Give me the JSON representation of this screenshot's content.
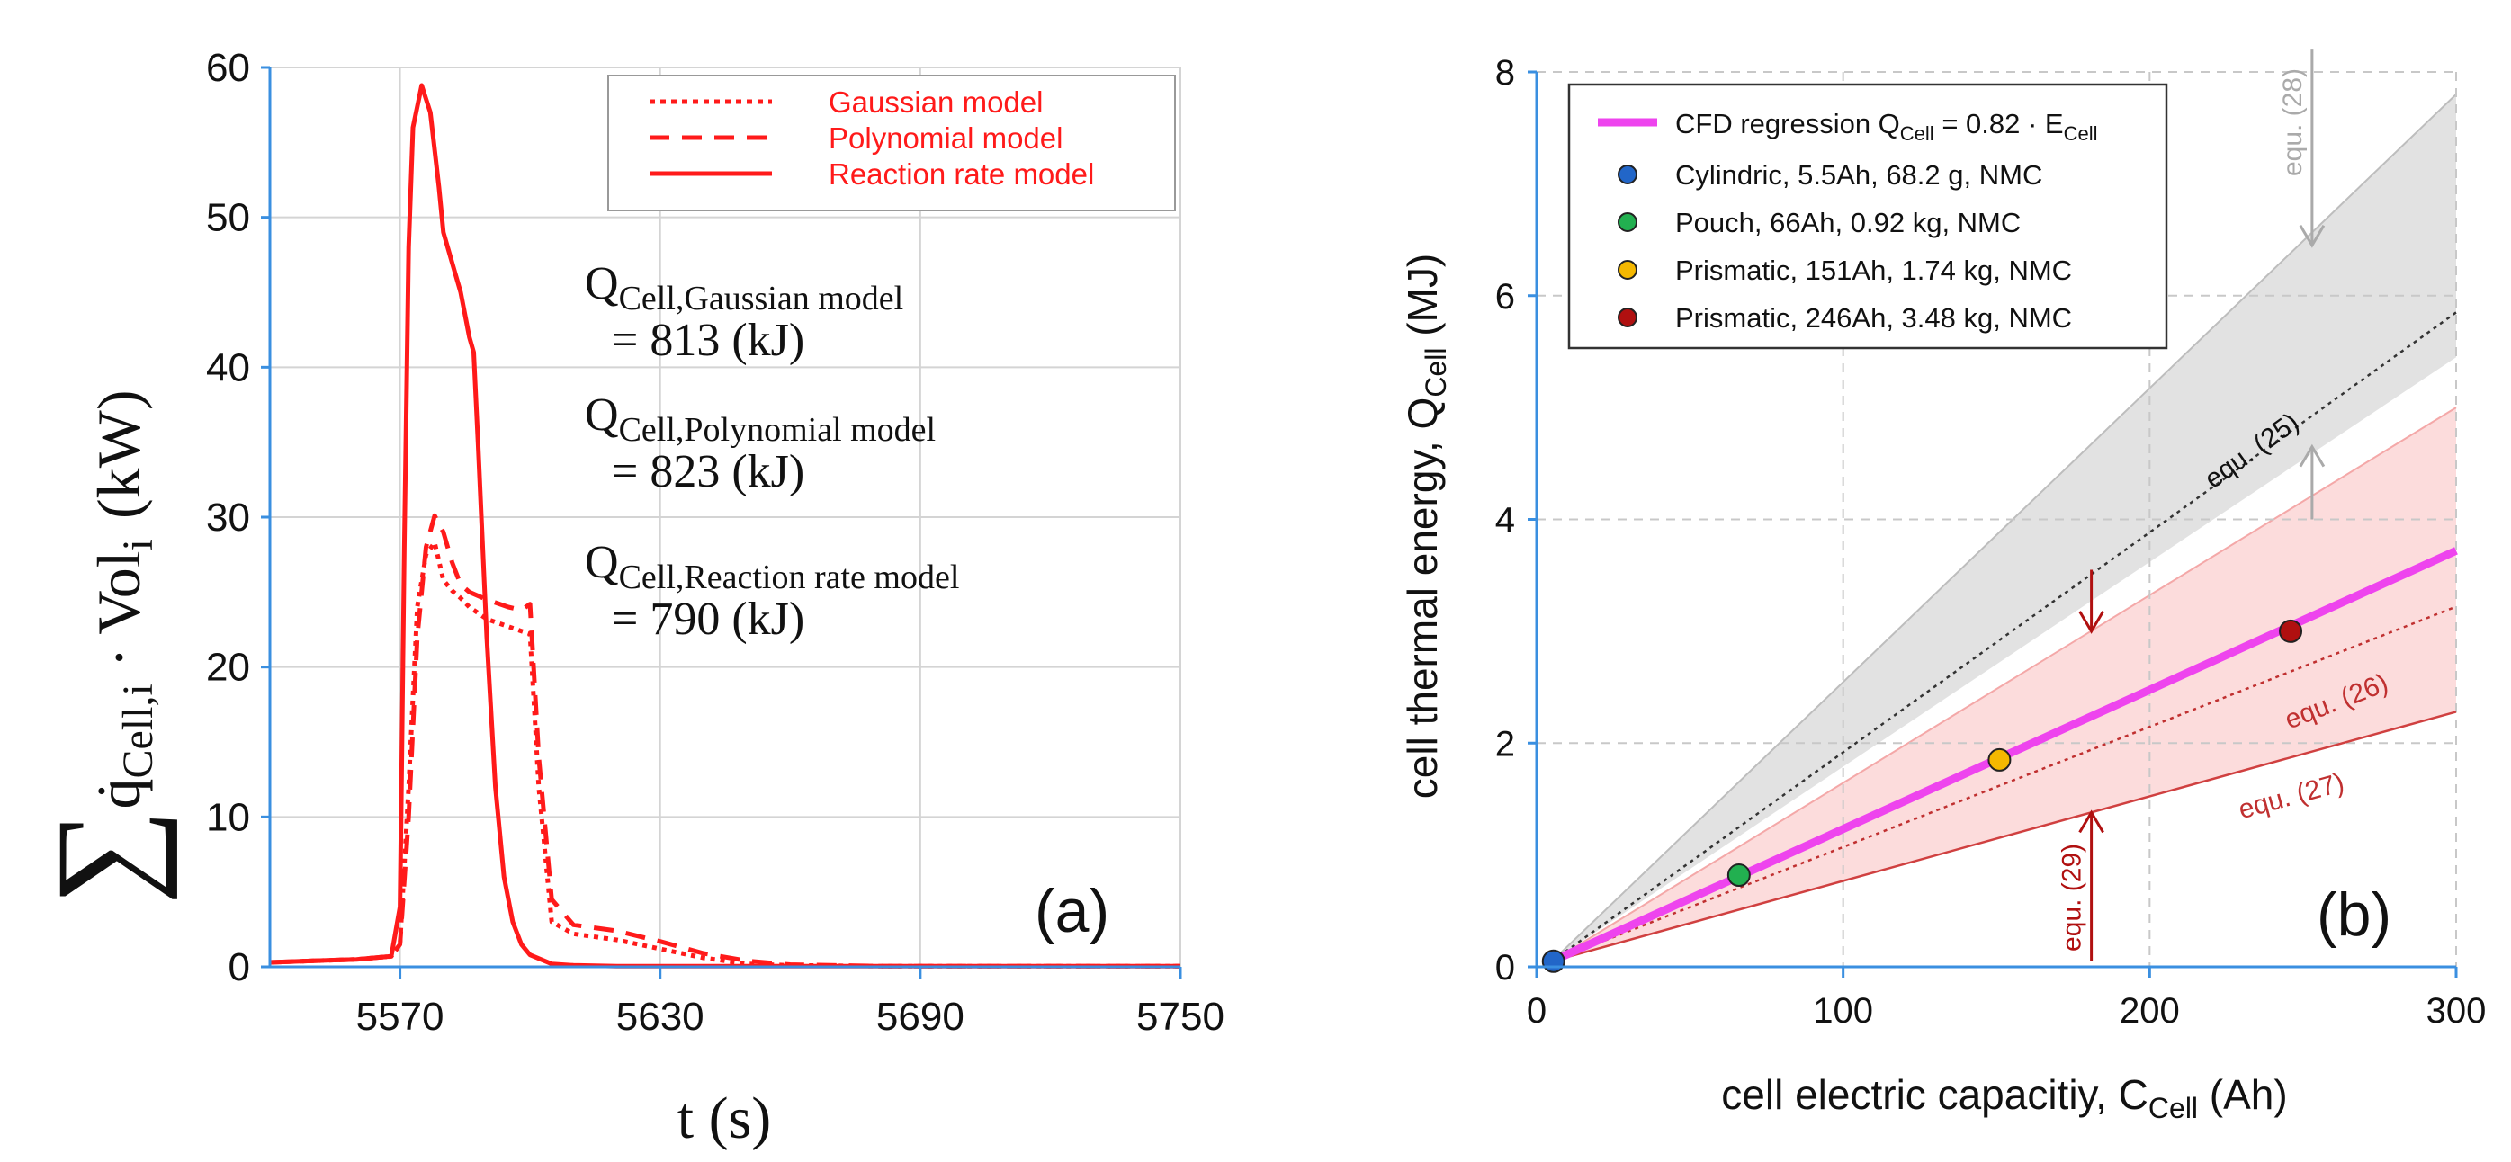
{
  "chart_data": [
    {
      "type": "line",
      "panel_label": "(a)",
      "xlabel": "t (s)",
      "ylabel": "∑ q̇Cell,i · Voli (kW)",
      "ylabel_sum": "∑",
      "ylabel_q": "q̇",
      "ylabel_q_sub": "Cell,i",
      "ylabel_dot": "·",
      "ylabel_vol": "Vol",
      "ylabel_vol_sub": "i",
      "ylabel_unit": "(kW)",
      "xlim": [
        5540,
        5750
      ],
      "ylim": [
        0,
        60
      ],
      "xticks": [
        5570,
        5630,
        5690,
        5750
      ],
      "yticks": [
        0,
        10,
        20,
        30,
        40,
        50,
        60
      ],
      "grid": true,
      "legend_position": "top-right",
      "series": [
        {
          "name": "Gaussian model",
          "style": "dotted",
          "color": "#ff1a1a",
          "x": [
            5540,
            5550,
            5560,
            5568,
            5570,
            5572,
            5574,
            5576,
            5578,
            5580,
            5582,
            5584,
            5586,
            5590,
            5595,
            5598,
            5600,
            5602,
            5605,
            5610,
            5620,
            5630,
            5640,
            5650,
            5660,
            5680,
            5750
          ],
          "y": [
            0.3,
            0.4,
            0.5,
            0.7,
            1.5,
            12,
            24,
            27.5,
            28.3,
            25.8,
            25.1,
            24.6,
            24.0,
            23.2,
            22.7,
            22.4,
            22.2,
            12,
            3,
            2.2,
            1.8,
            1.2,
            0.6,
            0.2,
            0.1,
            0.05,
            0.05
          ]
        },
        {
          "name": "Polynomial model",
          "style": "dashed",
          "color": "#ff1a1a",
          "x": [
            5540,
            5550,
            5560,
            5568,
            5570,
            5572,
            5574,
            5576,
            5578,
            5580,
            5582,
            5584,
            5586,
            5590,
            5595,
            5598,
            5600,
            5602,
            5605,
            5610,
            5620,
            5630,
            5640,
            5650,
            5660,
            5680,
            5750
          ],
          "y": [
            0.3,
            0.4,
            0.5,
            0.7,
            1.5,
            10,
            22,
            28,
            30.1,
            29,
            27,
            25.5,
            25,
            24.5,
            24,
            23.8,
            24.2,
            14,
            4.5,
            2.8,
            2.4,
            1.7,
            0.9,
            0.4,
            0.15,
            0.05,
            0.05
          ]
        },
        {
          "name": "Reaction rate model",
          "style": "solid",
          "color": "#ff1a1a",
          "x": [
            5540,
            5550,
            5560,
            5568,
            5570,
            5571,
            5572,
            5573,
            5575,
            5577,
            5579,
            5580,
            5582,
            5584,
            5586,
            5587,
            5588,
            5590,
            5592,
            5594,
            5596,
            5598,
            5600,
            5605,
            5610,
            5620,
            5750
          ],
          "y": [
            0.3,
            0.4,
            0.5,
            0.7,
            4,
            28,
            48,
            56,
            58.8,
            57,
            52,
            49,
            47,
            45,
            42,
            41,
            35,
            22,
            12,
            6,
            3,
            1.5,
            0.8,
            0.2,
            0.1,
            0.05,
            0.05
          ]
        }
      ],
      "annotations": [
        {
          "q": "Q",
          "sub": "Cell,Gaussian model",
          "value": "= 813 (kJ)"
        },
        {
          "q": "Q",
          "sub": "Cell,Polynomial model",
          "value": "= 823 (kJ)"
        },
        {
          "q": "Q",
          "sub": "Cell,Reaction rate model",
          "value": "= 790 (kJ)"
        }
      ]
    },
    {
      "type": "scatter",
      "panel_label": "(b)",
      "xlabel_main": "cell electric capacitiy, C",
      "xlabel_sub": "Cell",
      "xlabel_unit": " (Ah)",
      "ylabel_main": "cell thermal energy, Q",
      "ylabel_sub": "Cell",
      "ylabel_unit": " (MJ)",
      "xlim": [
        0,
        300
      ],
      "ylim": [
        0,
        8
      ],
      "xticks": [
        0,
        100,
        200,
        300
      ],
      "yticks": [
        0,
        2,
        4,
        6,
        8
      ],
      "grid": true,
      "legend_position": "top-left",
      "regression": {
        "label_prefix": "CFD regression Q",
        "label_sub1": "Cell",
        "label_mid": " = 0.82 · E",
        "label_sub2": "Cell",
        "color": "#ee44ee",
        "x": [
          5,
          300
        ],
        "y": [
          0.05,
          3.72
        ]
      },
      "points": [
        {
          "label": "Cylindric, 5.5Ah, 68.2 g, NMC",
          "x": 5.5,
          "y": 0.05,
          "color": "#2266c8"
        },
        {
          "label": "Pouch, 66Ah, 0.92 kg, NMC",
          "x": 66,
          "y": 0.82,
          "color": "#22b050"
        },
        {
          "label": "Prismatic, 151Ah, 1.74 kg, NMC",
          "x": 151,
          "y": 1.85,
          "color": "#f5b800"
        },
        {
          "label": "Prismatic, 246Ah, 3.48 kg, NMC",
          "x": 246,
          "y": 3.0,
          "color": "#b01010"
        }
      ],
      "bands": [
        {
          "name": "gray",
          "color": "#d8d8d8",
          "upper": [
            [
              5,
              0.05
            ],
            [
              300,
              7.8
            ]
          ],
          "lower": [
            [
              5,
              0.05
            ],
            [
              300,
              5.45
            ]
          ]
        },
        {
          "name": "pink",
          "color": "#fbd0d0",
          "upper": [
            [
              5,
              0.05
            ],
            [
              300,
              5.0
            ]
          ],
          "lower": [
            [
              5,
              0.05
            ],
            [
              300,
              2.28
            ]
          ]
        }
      ],
      "lines": [
        {
          "label": "equ. (25)",
          "style": "dotted",
          "color": "#333333",
          "x": [
            5,
            300
          ],
          "y": [
            0.05,
            5.85
          ],
          "label_at": [
            235,
            4.55
          ],
          "label_color": "#111111"
        },
        {
          "label": "equ. (26)",
          "style": "dotted",
          "color": "#c03030",
          "x": [
            5,
            300
          ],
          "y": [
            0.05,
            3.22
          ],
          "label_at": [
            262,
            2.3
          ],
          "label_color": "#c03030"
        },
        {
          "label": "equ. (27)",
          "style": "solid",
          "color": "#d04040",
          "x": [
            5,
            300
          ],
          "y": [
            0.05,
            2.28
          ],
          "label_at": [
            247,
            1.45
          ],
          "label_color": "#c03030"
        }
      ],
      "arrows": [
        {
          "label": "equ. (28)",
          "color": "#aaaaaa",
          "x": 253,
          "y_from": 8.2,
          "y_to": 6.45,
          "label_color": "#aaaaaa"
        },
        {
          "label": "",
          "color": "#aaaaaa",
          "x": 253,
          "y_from": 4.0,
          "y_to": 4.65
        },
        {
          "label": "",
          "color": "#b01010",
          "x": 181,
          "y_from": 3.55,
          "y_to": 3.0
        },
        {
          "label": "equ. (29)",
          "color": "#b01010",
          "x": 181,
          "y_from": 0.05,
          "y_to": 1.38,
          "label_color": "#b01010"
        }
      ]
    }
  ]
}
